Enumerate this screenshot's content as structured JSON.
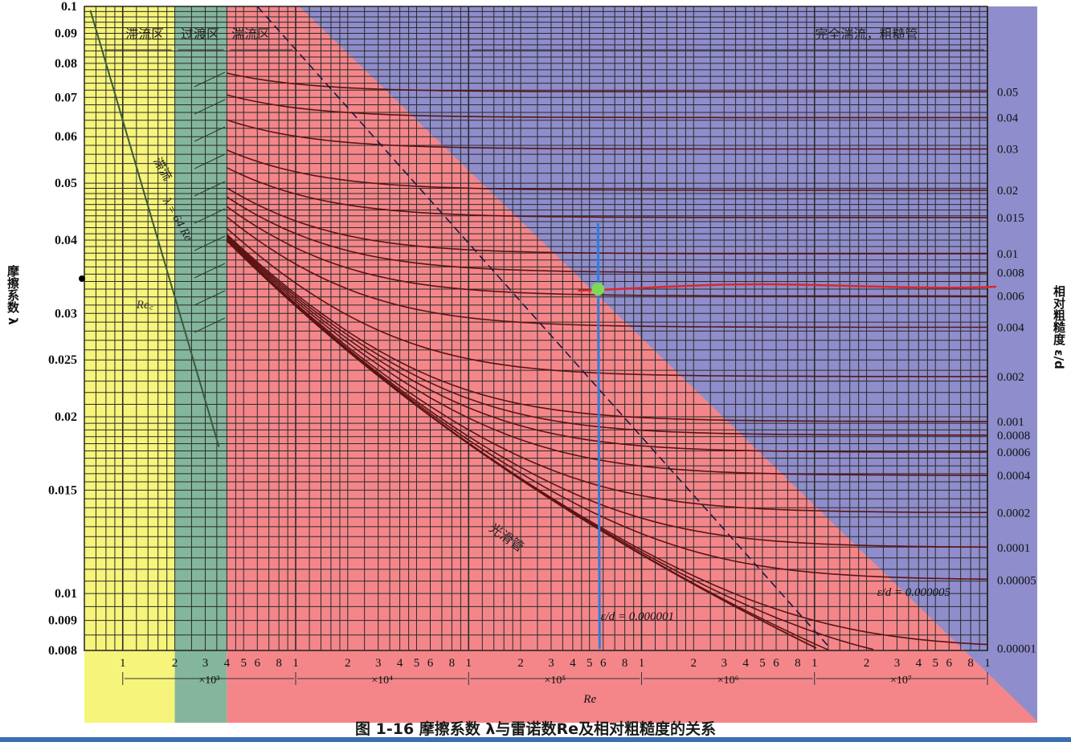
{
  "caption": "图 1-16 摩擦系数 λ与雷诺数Re及相对粗糙度的关系",
  "left_axis_title": "摩擦系数 λ",
  "right_axis_title": "相对粗糙度 ε/d",
  "chart_data": {
    "type": "line",
    "title": "",
    "xlabel": "Re",
    "ylabel": "摩擦系数 λ",
    "y2label": "相对粗糙度 ε/d",
    "x_scale": "log",
    "y_scale": "log",
    "xlim": [
      600,
      100000000
    ],
    "ylim": [
      0.008,
      0.1
    ],
    "y_ticks": [
      "0.1",
      "0.09",
      "0.08",
      "0.07",
      "0.06",
      "0.05",
      "0.04",
      "0.03",
      "0.025",
      "0.02",
      "0.015",
      "0.01",
      "0.009",
      "0.008"
    ],
    "y_tick_values": [
      0.1,
      0.09,
      0.08,
      0.07,
      0.06,
      0.05,
      0.04,
      0.03,
      0.025,
      0.02,
      0.015,
      0.01,
      0.009,
      0.008
    ],
    "x_tick_labels": [
      "1",
      "2",
      "3",
      "4",
      "5",
      "6",
      "8",
      "1",
      "2",
      "3",
      "4",
      "5",
      "6",
      "8",
      "1",
      "2",
      "3",
      "4",
      "5",
      "6",
      "8",
      "1",
      "2",
      "3",
      "4",
      "5",
      "6",
      "8",
      "1",
      "2",
      "3",
      "4",
      "5",
      "6",
      "8",
      "1"
    ],
    "x_tick_values": [
      1000,
      2000,
      3000,
      4000,
      5000,
      6000,
      8000,
      10000,
      20000,
      30000,
      40000,
      50000,
      60000,
      80000,
      100000,
      200000,
      300000,
      400000,
      500000,
      600000,
      800000,
      1000000,
      2000000,
      3000000,
      4000000,
      5000000,
      6000000,
      8000000,
      10000000,
      20000000,
      30000000,
      40000000,
      50000000,
      60000000,
      80000000,
      100000000
    ],
    "decade_labels": [
      "×10³",
      "×10⁴",
      "×10⁵",
      "×10⁶",
      "×10⁷"
    ],
    "regions": [
      {
        "name": "滞流区",
        "color": "#f6f47a",
        "re_range": [
          600,
          2000
        ]
      },
      {
        "name": "过渡区",
        "color": "#84b69d",
        "re_range": [
          2000,
          4000
        ]
      },
      {
        "name": "湍流区",
        "color": "#f4868a",
        "re_range": [
          4000,
          100000000
        ]
      },
      {
        "name": "完全湍流，粗糙管",
        "color": "#8f8dcb",
        "re_range": [
          100000,
          100000000
        ]
      }
    ],
    "roughness_labels": [
      "0.05",
      "0.04",
      "0.03",
      "0.02",
      "0.015",
      "0.01",
      "0.008",
      "0.006",
      "0.004",
      "0.002",
      "0.001",
      "0.0008",
      "0.0006",
      "0.0004",
      "0.0002",
      "0.0001",
      "0.00005",
      "0.00001"
    ],
    "roughness_values": [
      0.05,
      0.04,
      0.03,
      0.02,
      0.015,
      0.01,
      0.008,
      0.006,
      0.004,
      0.002,
      0.001,
      0.0008,
      0.0006,
      0.0004,
      0.0002,
      0.0001,
      5e-05,
      1e-05
    ],
    "laminar_formula": "λ = 64/Re",
    "laminar_label": "滞流",
    "critical_label": "Re꜀",
    "smooth_label": "光滑管",
    "annotations": [
      "ε/d = 0.000001",
      "ε/d = 0.000005"
    ],
    "annotation_values": [
      1e-06,
      5e-06
    ],
    "highlight": {
      "re": 560000,
      "lambda": 0.033,
      "vline_color": "#2f7de0",
      "curve_color": "#d9282e",
      "point_color": "#7ed957"
    },
    "colors": {
      "grid": "#2a2a2a",
      "curves": "#5a1414",
      "laminar": "#3b5a3b",
      "blue_curves": "#1f2a5e"
    }
  }
}
